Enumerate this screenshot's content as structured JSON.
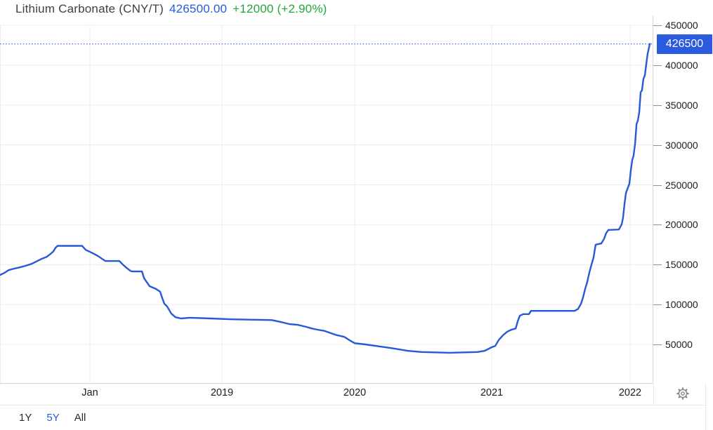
{
  "header": {
    "title": "Lithium Carbonate (CNY/T)",
    "price": "426500.00",
    "change": "+12000 (+2.90%)"
  },
  "y_axis": {
    "ticks": [
      450000,
      400000,
      350000,
      300000,
      250000,
      200000,
      150000,
      100000,
      50000
    ],
    "current_label": "426500"
  },
  "x_axis": {
    "ticks": [
      {
        "label": "Jan",
        "t": 2018
      },
      {
        "label": "2019",
        "t": 2019
      },
      {
        "label": "2020",
        "t": 2020
      },
      {
        "label": "2021",
        "t": 2021
      },
      {
        "label": "2022",
        "t": 2022
      }
    ]
  },
  "range_selector": {
    "options": [
      {
        "label": "1Y",
        "active": false
      },
      {
        "label": "5Y",
        "active": true
      },
      {
        "label": "All",
        "active": false
      }
    ]
  },
  "icons": {
    "settings": "gear"
  },
  "colors": {
    "line": "#2659d9",
    "dotted_line": "#2b5ae0",
    "badge_bg": "#2b5adf",
    "price_text": "#2659d9",
    "change_text": "#1ea83c",
    "grid": "#ececec",
    "axis_border": "#d6d6d6",
    "label_text": "#1c1c1c"
  },
  "chart_data": {
    "type": "line",
    "title": "Lithium Carbonate (CNY/T)",
    "unit": "CNY/T",
    "current_value": 426500,
    "change_abs": 12000,
    "change_pct": 2.9,
    "ylim": [
      0,
      462000
    ],
    "grid": true,
    "legend": "none",
    "x_is_decimal_year": true,
    "points": [
      [
        2017.319,
        137000
      ],
      [
        2017.351,
        139500
      ],
      [
        2017.383,
        143000
      ],
      [
        2017.426,
        145000
      ],
      [
        2017.468,
        146500
      ],
      [
        2017.511,
        148500
      ],
      [
        2017.559,
        151000
      ],
      [
        2017.596,
        154000
      ],
      [
        2017.638,
        157500
      ],
      [
        2017.67,
        159500
      ],
      [
        2017.702,
        163500
      ],
      [
        2017.723,
        166500
      ],
      [
        2017.739,
        171000
      ],
      [
        2017.755,
        173500
      ],
      [
        2017.941,
        173500
      ],
      [
        2017.968,
        168500
      ],
      [
        2018.0,
        166000
      ],
      [
        2018.032,
        163500
      ],
      [
        2018.064,
        160500
      ],
      [
        2018.09,
        157500
      ],
      [
        2018.117,
        154500
      ],
      [
        2018.223,
        154500
      ],
      [
        2018.25,
        150000
      ],
      [
        2018.277,
        146000
      ],
      [
        2018.309,
        142000
      ],
      [
        2018.319,
        141500
      ],
      [
        2018.394,
        141500
      ],
      [
        2018.41,
        133000
      ],
      [
        2018.426,
        129000
      ],
      [
        2018.452,
        123000
      ],
      [
        2018.5,
        119500
      ],
      [
        2018.532,
        116000
      ],
      [
        2018.548,
        108000
      ],
      [
        2018.564,
        101000
      ],
      [
        2018.585,
        97500
      ],
      [
        2018.617,
        88500
      ],
      [
        2018.649,
        84000
      ],
      [
        2018.691,
        82500
      ],
      [
        2018.755,
        83500
      ],
      [
        2018.915,
        82500
      ],
      [
        2019.074,
        81500
      ],
      [
        2019.376,
        80500
      ],
      [
        2019.444,
        78000
      ],
      [
        2019.508,
        75500
      ],
      [
        2019.571,
        74500
      ],
      [
        2019.635,
        72000
      ],
      [
        2019.677,
        70000
      ],
      [
        2019.72,
        68500
      ],
      [
        2019.772,
        67000
      ],
      [
        2019.857,
        62000
      ],
      [
        2019.921,
        59500
      ],
      [
        2019.963,
        55000
      ],
      [
        2020.0,
        51500
      ],
      [
        2020.077,
        50000
      ],
      [
        2020.179,
        47500
      ],
      [
        2020.282,
        45000
      ],
      [
        2020.385,
        42000
      ],
      [
        2020.487,
        40500
      ],
      [
        2020.692,
        39500
      ],
      [
        2020.897,
        40500
      ],
      [
        2020.949,
        42000
      ],
      [
        2021.0,
        46500
      ],
      [
        2021.025,
        48000
      ],
      [
        2021.051,
        55500
      ],
      [
        2021.081,
        61500
      ],
      [
        2021.112,
        66000
      ],
      [
        2021.142,
        68500
      ],
      [
        2021.173,
        70000
      ],
      [
        2021.188,
        79000
      ],
      [
        2021.203,
        86000
      ],
      [
        2021.228,
        88000
      ],
      [
        2021.269,
        88000
      ],
      [
        2021.284,
        92000
      ],
      [
        2021.599,
        92000
      ],
      [
        2021.624,
        94500
      ],
      [
        2021.645,
        101000
      ],
      [
        2021.66,
        109000
      ],
      [
        2021.675,
        119500
      ],
      [
        2021.69,
        128000
      ],
      [
        2021.706,
        140500
      ],
      [
        2021.721,
        150000
      ],
      [
        2021.736,
        159000
      ],
      [
        2021.751,
        175000
      ],
      [
        2021.792,
        176500
      ],
      [
        2021.812,
        182500
      ],
      [
        2021.827,
        189500
      ],
      [
        2021.843,
        193500
      ],
      [
        2021.919,
        194000
      ],
      [
        2021.939,
        200500
      ],
      [
        2021.949,
        209000
      ],
      [
        2021.959,
        225000
      ],
      [
        2021.97,
        240000
      ],
      [
        2021.995,
        251500
      ],
      [
        2022.005,
        268000
      ],
      [
        2022.015,
        281000
      ],
      [
        2022.025,
        286500
      ],
      [
        2022.036,
        301500
      ],
      [
        2022.046,
        326000
      ],
      [
        2022.056,
        330500
      ],
      [
        2022.066,
        341000
      ],
      [
        2022.076,
        366000
      ],
      [
        2022.086,
        368500
      ],
      [
        2022.096,
        382500
      ],
      [
        2022.107,
        387500
      ],
      [
        2022.117,
        401500
      ],
      [
        2022.127,
        414500
      ],
      [
        2022.142,
        426500
      ]
    ]
  }
}
